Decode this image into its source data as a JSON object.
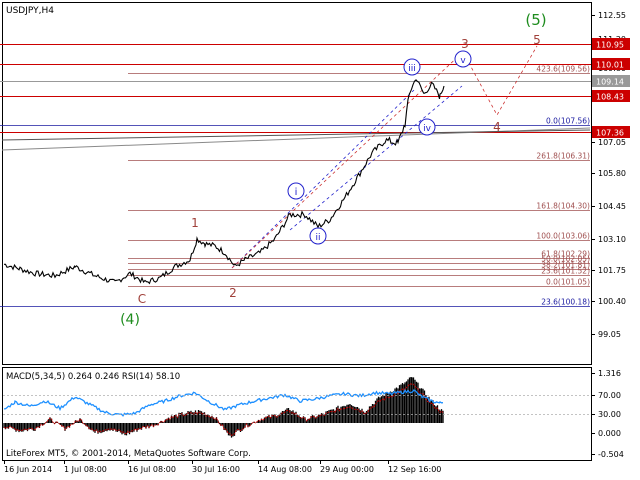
{
  "window": {
    "symbol_label": "USDJPY,H4",
    "footer_label": "LiteForex MT5, © 2001-2014, MetaQuotes Software Corp."
  },
  "chart_data": [
    {
      "type": "line",
      "series": [
        {
          "x": [
            "16 Jun 2014",
            "1 Jul 08:00",
            "16 Jul 08:00",
            "30 Jul 16:00",
            "14 Aug 08:00",
            "29 Aug 00:00",
            "12 Sep 16:00"
          ],
          "values": [
            102.0,
            101.5,
            101.3,
            102.6,
            103.4,
            104.8,
            108.9
          ],
          "color": "#000000"
        }
      ],
      "price_axis": {
        "range": [
          98.3,
          113.15
        ],
        "ticks": [
          "112.55",
          "111.20",
          "109.80",
          "108.45",
          "107.05",
          "105.80",
          "104.45",
          "103.10",
          "101.75",
          "100.40",
          "99.05"
        ]
      },
      "time_axis": {
        "ticks": [
          "16 Jun 2014",
          "1 Jul 08:00",
          "16 Jul 08:00",
          "30 Jul 16:00",
          "14 Aug 08:00",
          "29 Aug 00:00",
          "12 Sep 16:00"
        ]
      },
      "price_lines": [
        {
          "price": 110.95,
          "label": "110.95",
          "color": "#cc0000"
        },
        {
          "price": 110.01,
          "label": "110.01",
          "color": "#cc0000"
        },
        {
          "price": 109.14,
          "label": "109.14",
          "color": "#999999"
        },
        {
          "price": 108.43,
          "label": "108.43",
          "color": "#cc0000"
        },
        {
          "price": 107.36,
          "label": "107.36",
          "color": "#cc0000"
        }
      ],
      "fib_levels": [
        {
          "price": 109.56,
          "label": "423.6(109.56)",
          "color": "#a05050"
        },
        {
          "price": 107.56,
          "label": "0.0(107.56)",
          "color": "#1a1aa0"
        },
        {
          "price": 106.31,
          "label": "261.8(106.31)",
          "color": "#a05050"
        },
        {
          "price": 104.3,
          "label": "161.8(104.30)",
          "color": "#a05050"
        },
        {
          "price": 103.06,
          "label": "100.0(103.06)",
          "color": "#a05050"
        },
        {
          "price": 102.29,
          "label": "61.8(102.29)",
          "color": "#a05050"
        },
        {
          "price": 102.05,
          "label": "50.0(102.05)",
          "color": "#a05050"
        },
        {
          "price": 101.81,
          "label": "38.2(101.81)",
          "color": "#a05050"
        },
        {
          "price": 101.52,
          "label": "23.6(101.52)",
          "color": "#a05050"
        },
        {
          "price": 101.05,
          "label": "0.0(101.05)",
          "color": "#a05050"
        },
        {
          "price": 100.18,
          "label": "23.6(100.18)",
          "color": "#1a1aa0"
        }
      ],
      "wave_labels": [
        {
          "text": "(5)",
          "color": "#1e8c1e"
        },
        {
          "text": "5",
          "color": "#a0403a"
        },
        {
          "text": "3",
          "color": "#a0403a"
        },
        {
          "text": "4",
          "color": "#a0403a"
        },
        {
          "text": "1",
          "color": "#a0403a"
        },
        {
          "text": "2",
          "color": "#a0403a"
        },
        {
          "text": "C",
          "color": "#a0403a"
        },
        {
          "text": "(4)",
          "color": "#1e8c1e"
        },
        {
          "text": "i",
          "color": "#2222cc"
        },
        {
          "text": "ii",
          "color": "#2222cc"
        },
        {
          "text": "iii",
          "color": "#2222cc"
        },
        {
          "text": "iv",
          "color": "#2222cc"
        },
        {
          "text": "v",
          "color": "#2222cc"
        }
      ]
    },
    {
      "type": "area",
      "title": "MACD(5,34,5) 0.264 0.246 RSI(14) 58.10",
      "macd_histogram_color": "#000000",
      "macd_signal_color": "#cc0000",
      "rsi_color": "#1e90ff",
      "axis": {
        "ticks": [
          "1.316",
          "70.00",
          "30.00",
          "0.000",
          "-0.504"
        ]
      }
    }
  ]
}
